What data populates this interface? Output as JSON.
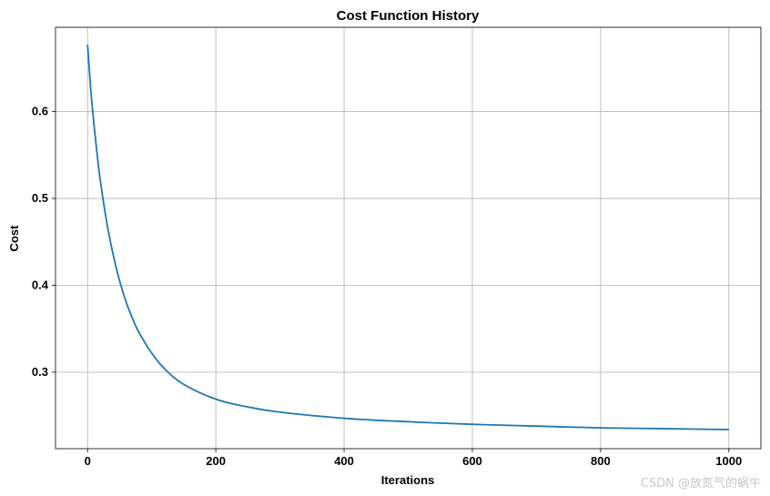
{
  "chart_data": {
    "type": "line",
    "title": "Cost Function History",
    "xlabel": "Iterations",
    "ylabel": "Cost",
    "xlim": [
      -50,
      1050
    ],
    "ylim": [
      0.212,
      0.697
    ],
    "xticks": [
      0,
      200,
      400,
      600,
      800,
      1000
    ],
    "yticks": [
      0.3,
      0.4,
      0.5,
      0.6
    ],
    "ytick_labels": [
      "0.3",
      "0.4",
      "0.5",
      "0.6"
    ],
    "grid": true,
    "line_color": "#1f77b4",
    "series": [
      {
        "x": [
          0,
          5,
          10,
          15,
          20,
          30,
          40,
          50,
          60,
          70,
          80,
          100,
          120,
          150,
          200,
          250,
          300,
          400,
          500,
          600,
          700,
          800,
          900,
          1000
        ],
        "y": [
          0.677,
          0.625,
          0.585,
          0.55,
          0.52,
          0.472,
          0.435,
          0.405,
          0.381,
          0.362,
          0.346,
          0.322,
          0.304,
          0.286,
          0.269,
          0.26,
          0.254,
          0.247,
          0.243,
          0.24,
          0.238,
          0.236,
          0.235,
          0.234
        ]
      }
    ]
  },
  "watermark": "CSDN @放氮气的蜗牛"
}
